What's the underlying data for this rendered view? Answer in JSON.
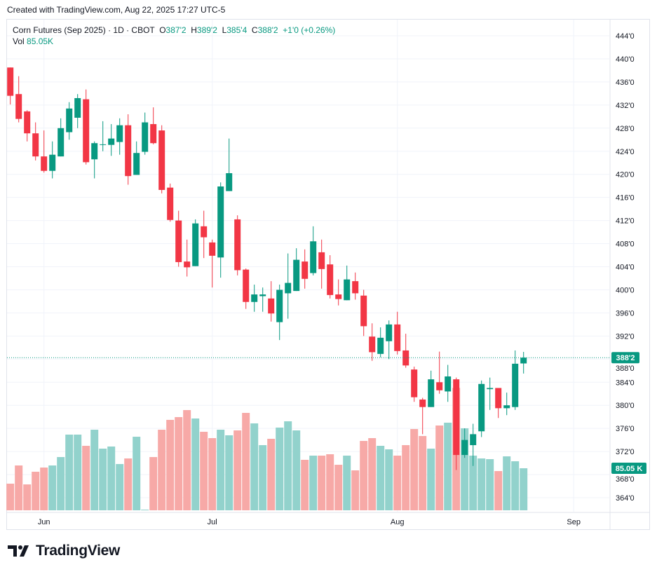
{
  "header": {
    "created": "Created with TradingView.com, Aug 22, 2025 17:27 UTC-5"
  },
  "legend": {
    "symbol": "Corn Futures (Sep 2025) · 1D · CBOT",
    "o_label": "O",
    "o": "387'2",
    "h_label": "H",
    "h": "389'2",
    "l_label": "L",
    "l": "385'4",
    "c_label": "C",
    "c": "388'2",
    "change": "+1'0 (+0.26%)",
    "vol_label": "Vol",
    "vol": "85.05K"
  },
  "logo": {
    "text": "TradingView"
  },
  "colors": {
    "up": "#089981",
    "down": "#f23645",
    "vol_up": "#92d2cc",
    "vol_down": "#f7a9a7",
    "grid": "#f0f3fa"
  },
  "chart_data": {
    "type": "candlestick",
    "title": "Corn Futures (Sep 2025) · 1D · CBOT",
    "ylim": [
      362,
      446
    ],
    "price_ticks": [
      444,
      440,
      436,
      432,
      428,
      424,
      420,
      416,
      412,
      408,
      404,
      400,
      396,
      392,
      388,
      384,
      380,
      376,
      372,
      368,
      364
    ],
    "price_tick_labels": [
      "444'0",
      "440'0",
      "436'0",
      "432'0",
      "428'0",
      "424'0",
      "420'0",
      "416'0",
      "412'0",
      "408'0",
      "404'0",
      "400'0",
      "396'0",
      "392'0",
      "388'0",
      "384'0",
      "380'0",
      "376'0",
      "372'0",
      "368'0",
      "364'0"
    ],
    "x_labels": [
      {
        "label": "Jun",
        "index": 4
      },
      {
        "label": "Jul",
        "index": 24
      },
      {
        "label": "Aug",
        "index": 46
      },
      {
        "label": "Sep",
        "index": 67
      }
    ],
    "last_price": 388.25,
    "last_price_label": "388'2",
    "last_volume_label": "85.05 K",
    "candles": [
      [
        438.5,
        438.5,
        432.1,
        433.6
      ],
      [
        433.9,
        437.0,
        429.0,
        429.6
      ],
      [
        430.9,
        431.1,
        425.7,
        427.1
      ],
      [
        427.1,
        429.0,
        422.4,
        423.1
      ],
      [
        423.1,
        427.6,
        420.3,
        420.6
      ],
      [
        420.6,
        425.7,
        419.3,
        423.4
      ],
      [
        423.1,
        429.7,
        423.1,
        428.0
      ],
      [
        427.3,
        432.5,
        426.0,
        431.4
      ],
      [
        429.8,
        433.9,
        428.0,
        433.2
      ],
      [
        433.0,
        434.7,
        421.7,
        422.1
      ],
      [
        422.6,
        425.7,
        419.3,
        425.4
      ],
      [
        425.1,
        429.2,
        424.0,
        425.2
      ],
      [
        425.1,
        428.7,
        423.2,
        426.2
      ],
      [
        425.6,
        429.7,
        423.4,
        428.5
      ],
      [
        428.5,
        430.4,
        418.2,
        419.7
      ],
      [
        419.9,
        425.7,
        419.9,
        423.7
      ],
      [
        423.9,
        430.7,
        423.4,
        429.0
      ],
      [
        428.7,
        431.6,
        425.2,
        425.4
      ],
      [
        427.6,
        428.5,
        416.7,
        417.3
      ],
      [
        417.7,
        418.4,
        411.8,
        412.1
      ],
      [
        412.0,
        413.7,
        404.0,
        404.8
      ],
      [
        404.9,
        408.7,
        402.3,
        403.9
      ],
      [
        404.1,
        412.2,
        404.1,
        411.5
      ],
      [
        411.0,
        413.7,
        405.5,
        409.1
      ],
      [
        408.2,
        408.7,
        400.4,
        405.9
      ],
      [
        405.6,
        418.6,
        402.1,
        417.9
      ],
      [
        417.1,
        426.2,
        417.1,
        420.2
      ],
      [
        412.2,
        412.9,
        402.5,
        403.4
      ],
      [
        403.5,
        403.7,
        396.7,
        397.9
      ],
      [
        397.9,
        400.9,
        396.2,
        399.2
      ],
      [
        398.9,
        400.4,
        396.2,
        399.2
      ],
      [
        398.5,
        401.5,
        394.5,
        395.9
      ],
      [
        394.4,
        400.9,
        391.3,
        400.0
      ],
      [
        399.4,
        406.3,
        395.0,
        401.2
      ],
      [
        399.8,
        407.2,
        399.8,
        405.2
      ],
      [
        404.9,
        407.0,
        400.2,
        401.9
      ],
      [
        402.9,
        411.0,
        402.5,
        408.4
      ],
      [
        406.5,
        408.7,
        400.2,
        403.6
      ],
      [
        404.4,
        406.0,
        398.5,
        399.1
      ],
      [
        399.2,
        401.8,
        397.3,
        398.4
      ],
      [
        398.2,
        404.2,
        398.2,
        401.8
      ],
      [
        401.5,
        403.0,
        398.3,
        399.4
      ],
      [
        399.0,
        400.0,
        392.0,
        393.7
      ],
      [
        391.9,
        394.2,
        387.7,
        389.2
      ],
      [
        388.9,
        393.5,
        388.3,
        391.7
      ],
      [
        391.1,
        394.7,
        388.0,
        394.0
      ],
      [
        394.0,
        396.2,
        388.8,
        389.4
      ],
      [
        389.5,
        392.4,
        386.5,
        386.9
      ],
      [
        386.2,
        386.7,
        380.6,
        381.4
      ],
      [
        381.0,
        381.3,
        375.0,
        379.7
      ],
      [
        379.7,
        386.0,
        379.7,
        384.5
      ],
      [
        384.0,
        389.3,
        382.0,
        382.6
      ],
      [
        382.4,
        387.0,
        380.6,
        385.0
      ],
      [
        384.5,
        384.8,
        368.8,
        371.4
      ],
      [
        371.4,
        376.0,
        370.9,
        374.0
      ],
      [
        373.1,
        376.8,
        369.5,
        375.0
      ],
      [
        375.5,
        384.3,
        374.5,
        383.7
      ],
      [
        382.8,
        384.8,
        379.2,
        383.0
      ],
      [
        383.0,
        383.0,
        377.8,
        379.5
      ],
      [
        379.5,
        382.2,
        378.3,
        380.0
      ],
      [
        379.7,
        389.5,
        379.2,
        387.2
      ],
      [
        387.25,
        389.25,
        385.5,
        388.25
      ]
    ],
    "volumes_k": [
      53.9,
      90.7,
      52.4,
      78.0,
      86.5,
      90.7,
      107.7,
      153.1,
      153.1,
      130.4,
      163.0,
      124.7,
      129.0,
      93.6,
      104.9,
      148.8,
      1.4,
      107.7,
      163.0,
      182.9,
      188.5,
      202.7,
      185.7,
      158.8,
      146.0,
      163.0,
      151.7,
      161.6,
      197.0,
      175.8,
      131.8,
      144.6,
      167.3,
      180.0,
      161.6,
      102.1,
      110.6,
      110.6,
      113.4,
      92.1,
      110.6,
      80.8,
      140.3,
      146.0,
      130.4,
      123.3,
      110.6,
      131.8,
      164.4,
      150.3,
      124.7,
      171.5,
      177.2,
      247.6,
      165.8,
      110.6,
      104.9,
      103.5,
      79.4,
      109.1,
      99.2,
      85.05
    ]
  }
}
